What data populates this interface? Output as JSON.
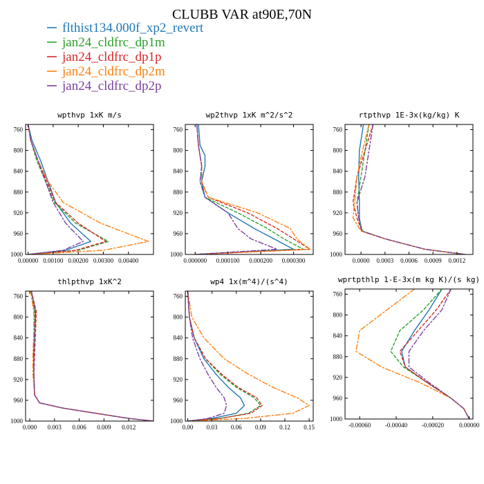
{
  "title": "CLUBB VAR at90E,70N",
  "legend": [
    {
      "label": "flthist134.000f_xp2_revert",
      "color": "#1f77b4",
      "dash": "solid"
    },
    {
      "label": "jan24_cldfrc_dp1m",
      "color": "#2ca02c",
      "dash": "dashed"
    },
    {
      "label": "jan24_cldfrc_dp1p",
      "color": "#d62728",
      "dash": "dashed"
    },
    {
      "label": "jan24_cldfrc_dp2m",
      "color": "#ff7f0e",
      "dash": "dashdot"
    },
    {
      "label": "jan24_cldfrc_dp2p",
      "color": "#7b3f9e",
      "dash": "dashdot"
    }
  ],
  "chart_data": [
    {
      "type": "line",
      "title": "wpthvp  1xK m/s",
      "xlim": [
        -0.0001,
        0.005
      ],
      "ylim": [
        1000,
        750
      ],
      "xticks": [
        "0.00000",
        "0.00100",
        "0.00200",
        "0.00300",
        "0.00400"
      ],
      "xtick_values": [
        0,
        0.001,
        0.002,
        0.003,
        0.004
      ],
      "yticks": [
        760,
        800,
        840,
        880,
        920,
        960,
        1000
      ],
      "series": [
        {
          "name": "flthist134.000f_xp2_revert",
          "y": [
            750,
            780,
            820,
            860,
            900,
            940,
            975,
            992,
            1000
          ],
          "x": [
            0.0,
            0.00015,
            0.0005,
            0.0008,
            0.0011,
            0.0017,
            0.0025,
            0.0015,
            0.0
          ]
        },
        {
          "name": "jan24_cldfrc_dp1m",
          "y": [
            750,
            780,
            820,
            860,
            900,
            940,
            975,
            992,
            1000
          ],
          "x": [
            0.0,
            0.0001,
            0.00035,
            0.0007,
            0.00105,
            0.0019,
            0.0032,
            0.002,
            0.0
          ]
        },
        {
          "name": "jan24_cldfrc_dp1p",
          "y": [
            750,
            780,
            820,
            860,
            900,
            940,
            975,
            992,
            1000
          ],
          "x": [
            0.0,
            0.0001,
            0.0004,
            0.00075,
            0.0011,
            0.002,
            0.0031,
            0.0019,
            0.0
          ]
        },
        {
          "name": "jan24_cldfrc_dp2m",
          "y": [
            750,
            780,
            820,
            860,
            900,
            940,
            975,
            992,
            1000
          ],
          "x": [
            0.0,
            0.0001,
            0.0004,
            0.0008,
            0.0014,
            0.0029,
            0.0048,
            0.003,
            0.0
          ]
        },
        {
          "name": "jan24_cldfrc_dp2p",
          "y": [
            750,
            780,
            820,
            860,
            900,
            940,
            975,
            992,
            1000
          ],
          "x": [
            0.0,
            0.0001,
            0.0004,
            0.0007,
            0.001,
            0.0015,
            0.0022,
            0.0014,
            0.0
          ]
        }
      ]
    },
    {
      "type": "line",
      "title": "wp2thvp  1xK m^2/s^2",
      "xlim": [
        -3e-05,
        0.00036
      ],
      "ylim": [
        1000,
        750
      ],
      "xticks": [
        "0.000000",
        "0.000100",
        "0.000200",
        "0.000300"
      ],
      "xtick_values": [
        0,
        0.0001,
        0.0002,
        0.0003
      ],
      "yticks": [
        760,
        800,
        840,
        880,
        920,
        960,
        1000
      ],
      "series": [
        {
          "name": "flthist134.000f_xp2_revert",
          "y": [
            750,
            790,
            810,
            830,
            860,
            890,
            920,
            950,
            970,
            990,
            1000
          ],
          "x": [
            1e-05,
            1.5e-05,
            3e-05,
            3e-05,
            2e-05,
            3e-05,
            0.0001,
            0.00018,
            0.00024,
            0.0003,
            0.0
          ]
        },
        {
          "name": "jan24_cldfrc_dp1m",
          "y": [
            750,
            790,
            810,
            830,
            860,
            890,
            920,
            950,
            970,
            990,
            1000
          ],
          "x": [
            5e-06,
            1e-05,
            1.5e-05,
            2e-05,
            1.5e-05,
            3e-05,
            0.00013,
            0.00022,
            0.00027,
            0.00033,
            0.0
          ]
        },
        {
          "name": "jan24_cldfrc_dp1p",
          "y": [
            750,
            790,
            810,
            830,
            860,
            890,
            920,
            950,
            970,
            990,
            1000
          ],
          "x": [
            5e-06,
            1e-05,
            1.5e-05,
            2e-05,
            2e-05,
            4e-05,
            0.00016,
            0.00025,
            0.0003,
            0.00035,
            0.0
          ]
        },
        {
          "name": "jan24_cldfrc_dp2m",
          "y": [
            750,
            790,
            810,
            830,
            860,
            890,
            920,
            950,
            970,
            990,
            1000
          ],
          "x": [
            5e-06,
            1e-05,
            1.5e-05,
            2e-05,
            2e-05,
            4e-05,
            0.00019,
            0.00029,
            0.00031,
            0.00035,
            0.0
          ]
        },
        {
          "name": "jan24_cldfrc_dp2p",
          "y": [
            750,
            790,
            810,
            830,
            860,
            890,
            920,
            950,
            970,
            990,
            1000
          ],
          "x": [
            5e-06,
            1e-05,
            1.5e-05,
            2e-05,
            1.5e-05,
            3e-05,
            0.0001,
            0.00013,
            0.00017,
            0.00025,
            0.0
          ]
        }
      ]
    },
    {
      "type": "line",
      "title": "rtpthvp  1E-3x(kg/kg) K",
      "xlim": [
        -0.0002,
        0.0014
      ],
      "ylim": [
        1000,
        750
      ],
      "xticks": [
        "0.0000",
        "0.0003",
        "0.0006",
        "0.0009",
        "0.0012"
      ],
      "xtick_values": [
        0,
        0.0003,
        0.0006,
        0.0009,
        0.0012
      ],
      "yticks": [
        760,
        800,
        840,
        880,
        920,
        960,
        1000
      ],
      "series": [
        {
          "name": "flthist134.000f_xp2_revert",
          "y": [
            750,
            800,
            850,
            900,
            930,
            955,
            970,
            990,
            1000
          ],
          "x": [
            3e-05,
            -2e-05,
            -3e-05,
            -2e-05,
            -2e-05,
            1e-05,
            0.0003,
            0.0008,
            0.0013
          ]
        },
        {
          "name": "jan24_cldfrc_dp1m",
          "y": [
            750,
            800,
            850,
            900,
            930,
            955,
            970,
            990,
            1000
          ],
          "x": [
            0.0001,
            5e-05,
            0.0,
            -5e-05,
            -3e-05,
            2e-05,
            0.0003,
            0.0008,
            0.0013
          ]
        },
        {
          "name": "jan24_cldfrc_dp1p",
          "y": [
            750,
            800,
            850,
            900,
            930,
            955,
            970,
            990,
            1000
          ],
          "x": [
            0.00015,
            5e-05,
            -5e-05,
            -0.0001,
            -5e-05,
            1e-05,
            0.0003,
            0.0008,
            0.0013
          ]
        },
        {
          "name": "jan24_cldfrc_dp2m",
          "y": [
            750,
            800,
            850,
            900,
            930,
            955,
            970,
            990,
            1000
          ],
          "x": [
            0.0001,
            2e-05,
            -5e-05,
            -8e-05,
            -0.0001,
            0.0,
            0.0003,
            0.0008,
            0.0013
          ]
        },
        {
          "name": "jan24_cldfrc_dp2p",
          "y": [
            750,
            800,
            850,
            900,
            930,
            955,
            970,
            990,
            1000
          ],
          "x": [
            0.00015,
            0.0001,
            5e-05,
            -5e-05,
            -3e-05,
            1e-05,
            0.0003,
            0.0008,
            0.0013
          ]
        }
      ]
    },
    {
      "type": "line",
      "title": "thlpthvp  1xK^2",
      "xlim": [
        -0.0005,
        0.015
      ],
      "ylim": [
        1000,
        750
      ],
      "xticks": [
        "0.000",
        "0.003",
        "0.006",
        "0.009",
        "0.012"
      ],
      "xtick_values": [
        0,
        0.003,
        0.006,
        0.009,
        0.012
      ],
      "yticks": [
        760,
        800,
        840,
        880,
        920,
        960,
        1000
      ],
      "series": [
        {
          "name": "flthist134.000f_xp2_revert",
          "y": [
            750,
            790,
            830,
            870,
            910,
            950,
            965,
            975,
            985,
            995,
            1000
          ],
          "x": [
            0.0002,
            0.0007,
            0.0006,
            0.0005,
            0.0005,
            0.0006,
            0.0012,
            0.004,
            0.008,
            0.012,
            0.015
          ]
        },
        {
          "name": "jan24_cldfrc_dp1m",
          "y": [
            750,
            790,
            830,
            870,
            910,
            950,
            965,
            975,
            985,
            995,
            1000
          ],
          "x": [
            0.0002,
            0.0006,
            0.0006,
            0.0005,
            0.0005,
            0.0006,
            0.0012,
            0.004,
            0.008,
            0.012,
            0.015
          ]
        },
        {
          "name": "jan24_cldfrc_dp1p",
          "y": [
            750,
            790,
            830,
            870,
            910,
            950,
            965,
            975,
            985,
            995,
            1000
          ],
          "x": [
            0.0002,
            0.0008,
            0.0007,
            0.0006,
            0.0005,
            0.0006,
            0.0012,
            0.004,
            0.008,
            0.012,
            0.015
          ]
        },
        {
          "name": "jan24_cldfrc_dp2m",
          "y": [
            750,
            790,
            830,
            870,
            910,
            950,
            965,
            975,
            985,
            995,
            1000
          ],
          "x": [
            0.0001,
            0.0005,
            0.0005,
            0.0004,
            0.0004,
            0.0006,
            0.0012,
            0.004,
            0.008,
            0.012,
            0.015
          ]
        },
        {
          "name": "jan24_cldfrc_dp2p",
          "y": [
            750,
            790,
            830,
            870,
            910,
            950,
            965,
            975,
            985,
            995,
            1000
          ],
          "x": [
            0.0002,
            0.0007,
            0.0006,
            0.0005,
            0.0005,
            0.0006,
            0.0012,
            0.004,
            0.008,
            0.012,
            0.015
          ]
        }
      ]
    },
    {
      "type": "line",
      "title": "wp4  1x(m^4)/(s^4)",
      "xlim": [
        -0.003,
        0.155
      ],
      "ylim": [
        1000,
        750
      ],
      "xticks": [
        "0.00",
        "0.03",
        "0.06",
        "0.09",
        "0.12",
        "0.15"
      ],
      "xtick_values": [
        0,
        0.03,
        0.06,
        0.09,
        0.12,
        0.15
      ],
      "yticks": [
        760,
        800,
        840,
        880,
        920,
        960,
        1000
      ],
      "series": [
        {
          "name": "flthist134.000f_xp2_revert",
          "y": [
            750,
            800,
            840,
            880,
            910,
            935,
            955,
            970,
            985,
            995,
            1000
          ],
          "x": [
            0.0,
            0.002,
            0.008,
            0.02,
            0.035,
            0.05,
            0.065,
            0.07,
            0.06,
            0.03,
            0.0
          ]
        },
        {
          "name": "jan24_cldfrc_dp1m",
          "y": [
            750,
            800,
            840,
            880,
            910,
            935,
            955,
            970,
            985,
            995,
            1000
          ],
          "x": [
            0.0,
            0.002,
            0.008,
            0.022,
            0.04,
            0.06,
            0.082,
            0.09,
            0.075,
            0.04,
            0.0
          ]
        },
        {
          "name": "jan24_cldfrc_dp1p",
          "y": [
            750,
            800,
            840,
            880,
            910,
            935,
            955,
            970,
            985,
            995,
            1000
          ],
          "x": [
            0.0,
            0.002,
            0.008,
            0.022,
            0.042,
            0.062,
            0.085,
            0.092,
            0.078,
            0.04,
            0.0
          ]
        },
        {
          "name": "jan24_cldfrc_dp2m",
          "y": [
            750,
            800,
            840,
            880,
            910,
            935,
            955,
            970,
            985,
            995,
            1000
          ],
          "x": [
            0.0,
            0.005,
            0.02,
            0.045,
            0.075,
            0.105,
            0.135,
            0.15,
            0.13,
            0.07,
            0.0
          ]
        },
        {
          "name": "jan24_cldfrc_dp2p",
          "y": [
            750,
            800,
            840,
            880,
            910,
            935,
            955,
            970,
            985,
            995,
            1000
          ],
          "x": [
            0.0,
            0.002,
            0.006,
            0.015,
            0.025,
            0.035,
            0.045,
            0.048,
            0.045,
            0.025,
            0.0
          ]
        }
      ]
    },
    {
      "type": "line",
      "title": "wprtpthlp  1-E-3x(m kg K)/(s kg)",
      "xlim": [
        -0.00068,
        2e-05
      ],
      "ylim": [
        1000,
        750
      ],
      "xticks": [
        "-0.00060",
        "-0.00040",
        "-0.00020",
        "0.00000"
      ],
      "xtick_values": [
        -0.0006,
        -0.0004,
        -0.0002,
        0.0
      ],
      "yticks": [
        760,
        800,
        840,
        880,
        920,
        960,
        1000
      ],
      "series": [
        {
          "name": "flthist134.000f_xp2_revert",
          "y": [
            750,
            790,
            830,
            870,
            900,
            930,
            960,
            980,
            1000
          ],
          "x": [
            -0.00015,
            -0.00022,
            -0.0003,
            -0.00037,
            -0.00035,
            -0.00023,
            -0.0001,
            -3e-05,
            0.0
          ]
        },
        {
          "name": "jan24_cldfrc_dp1m",
          "y": [
            750,
            790,
            830,
            870,
            900,
            930,
            960,
            980,
            1000
          ],
          "x": [
            -0.00015,
            -0.00025,
            -0.00038,
            -0.00043,
            -0.00036,
            -0.00023,
            -0.0001,
            -3e-05,
            0.0
          ]
        },
        {
          "name": "jan24_cldfrc_dp1p",
          "y": [
            750,
            790,
            830,
            870,
            900,
            930,
            960,
            980,
            1000
          ],
          "x": [
            -0.0001,
            -0.00018,
            -0.00028,
            -0.00038,
            -0.00035,
            -0.00023,
            -0.0001,
            -3e-05,
            0.0
          ]
        },
        {
          "name": "jan24_cldfrc_dp2m",
          "y": [
            750,
            790,
            830,
            870,
            900,
            930,
            960,
            980,
            1000
          ],
          "x": [
            -0.0003,
            -0.00045,
            -0.0006,
            -0.00062,
            -0.00048,
            -0.00027,
            -0.0001,
            -3e-05,
            0.0
          ]
        },
        {
          "name": "jan24_cldfrc_dp2p",
          "y": [
            750,
            790,
            830,
            870,
            900,
            930,
            960,
            980,
            1000
          ],
          "x": [
            -0.0001,
            -0.00015,
            -0.00025,
            -0.00033,
            -0.00033,
            -0.00022,
            -0.0001,
            -3e-05,
            0.0
          ]
        }
      ]
    }
  ]
}
